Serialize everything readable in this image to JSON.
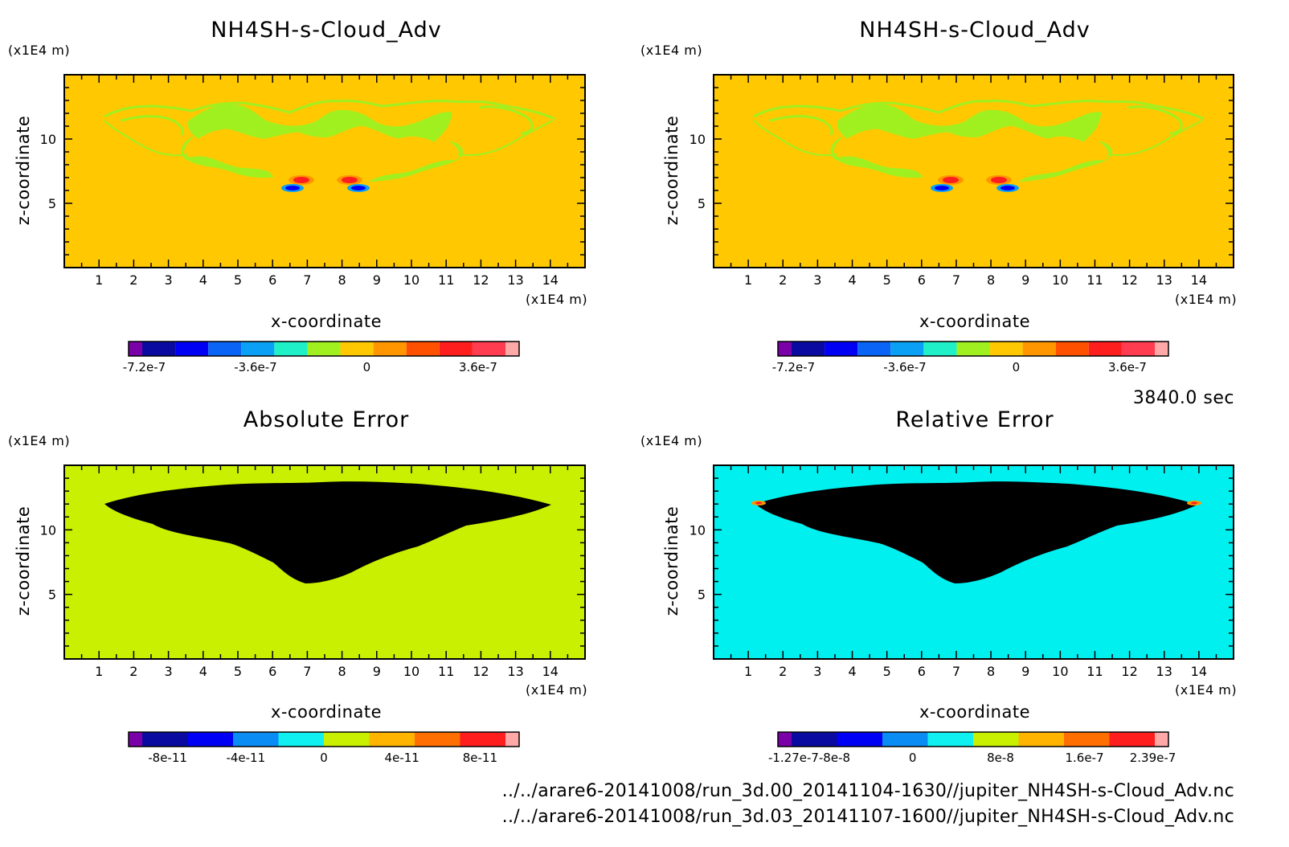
{
  "colors": {
    "background": "#ffffff",
    "axis": "#000000",
    "blob_line": "#b8f018"
  },
  "time_label": "3840.0 sec",
  "footer": {
    "line1": "../../arare6-20141008/run_3d.00_20141104-1630//jupiter_NH4SH-s-Cloud_Adv.nc",
    "line2": "../../arare6-20141008/run_3d.03_20141107-1600//jupiter_NH4SH-s-Cloud_Adv.nc"
  },
  "chart_data": [
    {
      "type": "heatmap",
      "title": "NH4SH-s-Cloud_Adv",
      "xlabel": "x-coordinate",
      "ylabel": "z-coordinate",
      "x_unit": "(x1E4 m)",
      "y_unit": "(x1E4 m)",
      "xlim": [
        0,
        15
      ],
      "ylim": [
        0,
        15
      ],
      "x_ticks": [
        "1",
        "2",
        "3",
        "4",
        "5",
        "6",
        "7",
        "8",
        "9",
        "10",
        "11",
        "12",
        "13",
        "14"
      ],
      "y_ticks": [
        "5",
        "10"
      ],
      "background_color": "#ffc800",
      "feature_color": "#a0f020",
      "colorbar": {
        "colors": [
          "#7a00a8",
          "#0a0aa0",
          "#0000f5",
          "#0a64f5",
          "#0aa0f5",
          "#20f0c8",
          "#a0f020",
          "#ffc800",
          "#ff9600",
          "#ff5000",
          "#ff1e1e",
          "#ff3c50",
          "#ffa8a8"
        ],
        "labels": [
          "-7.2e-7",
          "-3.6e-7",
          "0",
          "3.6e-7"
        ],
        "label_fracs": [
          0.04,
          0.325,
          0.61,
          0.895
        ]
      }
    },
    {
      "type": "heatmap",
      "title": "NH4SH-s-Cloud_Adv",
      "xlabel": "x-coordinate",
      "ylabel": "z-coordinate",
      "x_unit": "(x1E4 m)",
      "y_unit": "(x1E4 m)",
      "xlim": [
        0,
        15
      ],
      "ylim": [
        0,
        15
      ],
      "x_ticks": [
        "1",
        "2",
        "3",
        "4",
        "5",
        "6",
        "7",
        "8",
        "9",
        "10",
        "11",
        "12",
        "13",
        "14"
      ],
      "y_ticks": [
        "5",
        "10"
      ],
      "background_color": "#ffc800",
      "feature_color": "#a0f020",
      "colorbar": {
        "colors": [
          "#7a00a8",
          "#0a0aa0",
          "#0000f5",
          "#0a64f5",
          "#0aa0f5",
          "#20f0c8",
          "#a0f020",
          "#ffc800",
          "#ff9600",
          "#ff5000",
          "#ff1e1e",
          "#ff3c50",
          "#ffa8a8"
        ],
        "labels": [
          "-7.2e-7",
          "-3.6e-7",
          "0",
          "3.6e-7"
        ],
        "label_fracs": [
          0.04,
          0.325,
          0.61,
          0.895
        ]
      }
    },
    {
      "type": "heatmap",
      "title": "Absolute Error",
      "xlabel": "x-coordinate",
      "ylabel": "z-coordinate",
      "x_unit": "(x1E4 m)",
      "y_unit": "(x1E4 m)",
      "xlim": [
        0,
        15
      ],
      "ylim": [
        0,
        15
      ],
      "x_ticks": [
        "1",
        "2",
        "3",
        "4",
        "5",
        "6",
        "7",
        "8",
        "9",
        "10",
        "11",
        "12",
        "13",
        "14"
      ],
      "y_ticks": [
        "5",
        "10"
      ],
      "background_color": "#c8f000",
      "feature_color": "#10f0f0",
      "colorbar": {
        "colors": [
          "#7a00a8",
          "#0a0aa0",
          "#0000f5",
          "#0a8cf5",
          "#10f0f0",
          "#c8f000",
          "#ffb400",
          "#ff6e00",
          "#ff1e1e",
          "#ffa8a8"
        ],
        "labels": [
          "-8e-11",
          "-4e-11",
          "0",
          "4e-11",
          "8e-11"
        ],
        "label_fracs": [
          0.1,
          0.3,
          0.5,
          0.7,
          0.9
        ]
      }
    },
    {
      "type": "heatmap",
      "title": "Relative Error",
      "xlabel": "x-coordinate",
      "ylabel": "z-coordinate",
      "x_unit": "(x1E4 m)",
      "y_unit": "(x1E4 m)",
      "xlim": [
        0,
        15
      ],
      "ylim": [
        0,
        15
      ],
      "x_ticks": [
        "1",
        "2",
        "3",
        "4",
        "5",
        "6",
        "7",
        "8",
        "9",
        "10",
        "11",
        "12",
        "13",
        "14"
      ],
      "y_ticks": [
        "5",
        "10"
      ],
      "background_color": "#00f0f0",
      "feature_color": "#1e8cff",
      "colorbar": {
        "colors": [
          "#7a00a8",
          "#0a0aa0",
          "#0000f5",
          "#0a8cf5",
          "#10f0f0",
          "#c8f000",
          "#ffb400",
          "#ff6e00",
          "#ff1e1e",
          "#ffa8a8"
        ],
        "labels": [
          "-1.27e-7",
          "-8e-8",
          "0",
          "8e-8",
          "1.6e-7",
          "2.39e-7"
        ],
        "label_fracs": [
          0.04,
          0.145,
          0.345,
          0.57,
          0.785,
          0.96
        ]
      }
    }
  ]
}
